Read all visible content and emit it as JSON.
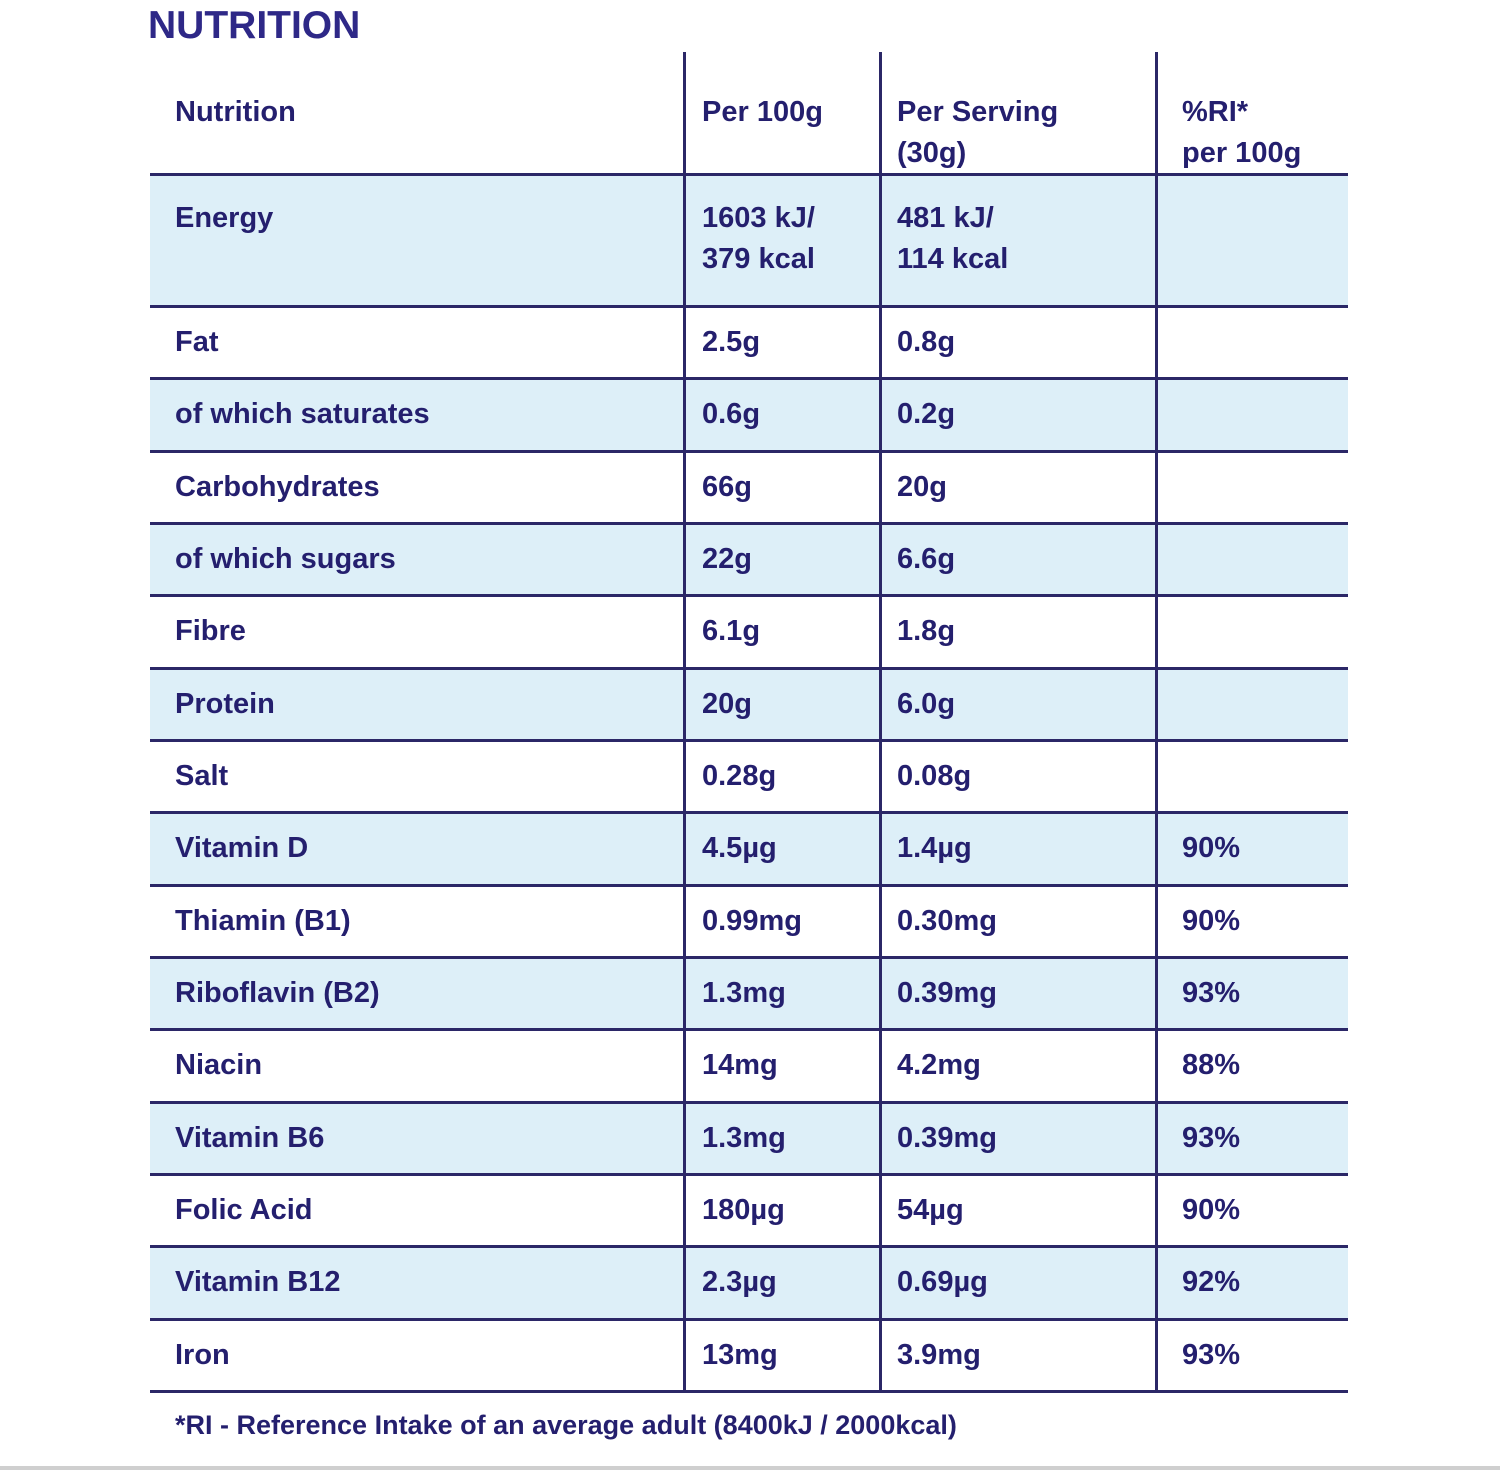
{
  "page": {
    "title": "NUTRITION",
    "footnote": "*RI - Reference Intake of an average adult (8400kJ / 2000kcal)"
  },
  "colors": {
    "text_navy": "#241f6e",
    "rule_navy": "#2b2767",
    "row_highlight_blue": "#ddeff8",
    "bottom_strip_gray": "#cfcfcf"
  },
  "table": {
    "headers": [
      "Nutrition",
      "Per 100g",
      "Per Serving\n(30g)",
      "%RI*\nper 100g"
    ],
    "rows": [
      {
        "name": "Energy",
        "per_100g": "1603 kJ/\n379 kcal",
        "per_serving": "481 kJ/\n114 kcal",
        "ri_per_100g": ""
      },
      {
        "name": "Fat",
        "per_100g": "2.5g",
        "per_serving": "0.8g",
        "ri_per_100g": ""
      },
      {
        "name": "of which saturates",
        "per_100g": "0.6g",
        "per_serving": "0.2g",
        "ri_per_100g": ""
      },
      {
        "name": "Carbohydrates",
        "per_100g": "66g",
        "per_serving": "20g",
        "ri_per_100g": ""
      },
      {
        "name": "of which sugars",
        "per_100g": "22g",
        "per_serving": "6.6g",
        "ri_per_100g": ""
      },
      {
        "name": "Fibre",
        "per_100g": "6.1g",
        "per_serving": "1.8g",
        "ri_per_100g": ""
      },
      {
        "name": "Protein",
        "per_100g": "20g",
        "per_serving": "6.0g",
        "ri_per_100g": ""
      },
      {
        "name": "Salt",
        "per_100g": "0.28g",
        "per_serving": "0.08g",
        "ri_per_100g": ""
      },
      {
        "name": "Vitamin D",
        "per_100g": "4.5µg",
        "per_serving": "1.4µg",
        "ri_per_100g": "90%"
      },
      {
        "name": "Thiamin (B1)",
        "per_100g": "0.99mg",
        "per_serving": "0.30mg",
        "ri_per_100g": "90%"
      },
      {
        "name": "Riboflavin (B2)",
        "per_100g": "1.3mg",
        "per_serving": "0.39mg",
        "ri_per_100g": "93%"
      },
      {
        "name": "Niacin",
        "per_100g": "14mg",
        "per_serving": "4.2mg",
        "ri_per_100g": "88%"
      },
      {
        "name": "Vitamin B6",
        "per_100g": "1.3mg",
        "per_serving": "0.39mg",
        "ri_per_100g": "93%"
      },
      {
        "name": "Folic Acid",
        "per_100g": "180µg",
        "per_serving": "54µg",
        "ri_per_100g": "90%"
      },
      {
        "name": "Vitamin B12",
        "per_100g": "2.3µg",
        "per_serving": "0.69µg",
        "ri_per_100g": "92%"
      },
      {
        "name": "Iron",
        "per_100g": "13mg",
        "per_serving": "3.9mg",
        "ri_per_100g": "93%"
      }
    ]
  }
}
